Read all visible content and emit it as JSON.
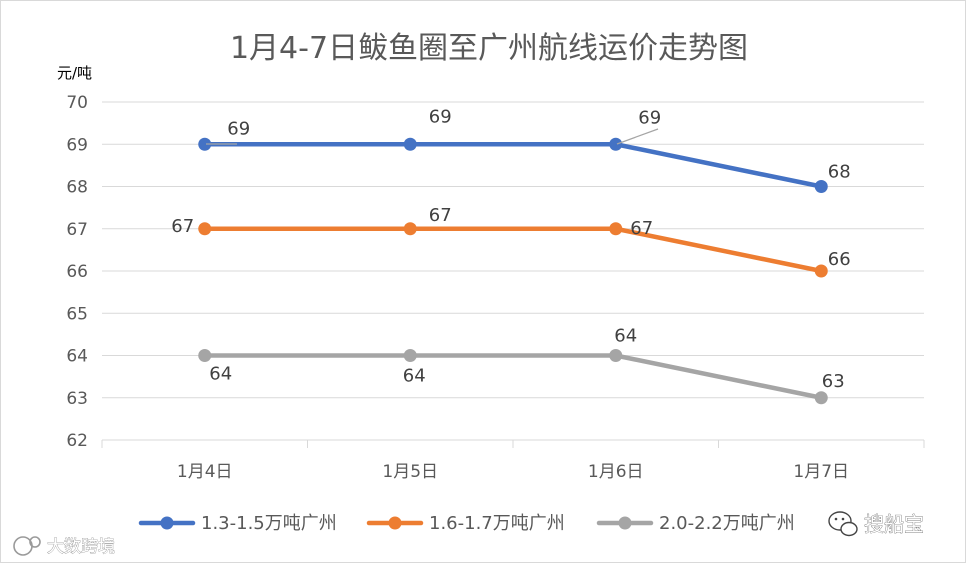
{
  "chart_data": {
    "type": "line",
    "title": "1月4-7日鲅鱼圈至广州航线运价走势图",
    "ylabel": "元/吨",
    "xlabel": "",
    "categories": [
      "1月4日",
      "1月5日",
      "1月6日",
      "1月7日"
    ],
    "ylim": [
      62,
      70
    ],
    "yticks": [
      62,
      63,
      64,
      65,
      66,
      67,
      68,
      69,
      70
    ],
    "grid": true,
    "legend_position": "bottom",
    "series": [
      {
        "name": "1.3-1.5万吨广州",
        "values": [
          69,
          69,
          69,
          68
        ],
        "color": "#4472C4"
      },
      {
        "name": "1.6-1.7万吨广州",
        "values": [
          67,
          67,
          67,
          66
        ],
        "color": "#ED7D31"
      },
      {
        "name": "2.0-2.2万吨广州",
        "values": [
          64,
          64,
          64,
          63
        ],
        "color": "#A5A5A5"
      }
    ]
  },
  "watermarks": {
    "left": "大数跨境",
    "right": "搜船宝"
  }
}
